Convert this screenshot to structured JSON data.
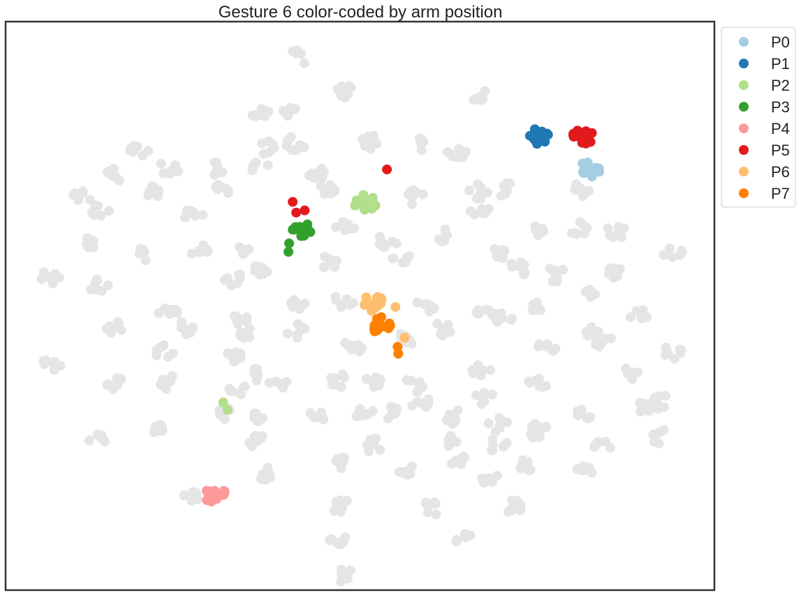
{
  "chart_data": {
    "type": "scatter",
    "title": "Gesture 6 color-coded by arm position",
    "xlabel": "",
    "ylabel": "",
    "xlim": [
      0,
      100
    ],
    "ylim": [
      0,
      100
    ],
    "axes_ticks": false,
    "grid": false,
    "legend": {
      "placement": "outside-top-right"
    },
    "background_color": "#e5e5e5",
    "background_clusters": [
      [
        41.5,
        93.8
      ],
      [
        47.5,
        87.8
      ],
      [
        36.1,
        84.0
      ],
      [
        40.5,
        84.0
      ],
      [
        67.3,
        86.9
      ],
      [
        19.0,
        77.4
      ],
      [
        36.7,
        77.9
      ],
      [
        40.9,
        78.6
      ],
      [
        51.5,
        78.6
      ],
      [
        59.2,
        78.4
      ],
      [
        63.7,
        76.9
      ],
      [
        15.1,
        73.0
      ],
      [
        23.2,
        74.4
      ],
      [
        29.9,
        74.2
      ],
      [
        35.7,
        74.2
      ],
      [
        44.0,
        73.7
      ],
      [
        57.8,
        69.0
      ],
      [
        66.8,
        70.1
      ],
      [
        70.5,
        70.5
      ],
      [
        81.5,
        70.5
      ],
      [
        10.5,
        69.0
      ],
      [
        13.4,
        66.5
      ],
      [
        20.3,
        70.1
      ],
      [
        30.2,
        70.1
      ],
      [
        45.5,
        70.1
      ],
      [
        26.5,
        66.2
      ],
      [
        48.0,
        64.0
      ],
      [
        61.5,
        62.5
      ],
      [
        67.0,
        66.5
      ],
      [
        76.0,
        63.5
      ],
      [
        81.0,
        63.5
      ],
      [
        86.0,
        63.0
      ],
      [
        11.5,
        61.2
      ],
      [
        19.5,
        58.8
      ],
      [
        27.5,
        59.5
      ],
      [
        34.2,
        59.8
      ],
      [
        54.0,
        61.5
      ],
      [
        69.7,
        59.3
      ],
      [
        72.3,
        56.5
      ],
      [
        77.5,
        55.5
      ],
      [
        86.0,
        56.0
      ],
      [
        94.3,
        59.0
      ],
      [
        6.1,
        54.9
      ],
      [
        13.3,
        53.4
      ],
      [
        31.9,
        54.8
      ],
      [
        36.0,
        56.5
      ],
      [
        45.5,
        57.5
      ],
      [
        56.0,
        58.0
      ],
      [
        82.5,
        51.8
      ],
      [
        23.0,
        48.5
      ],
      [
        33.0,
        48.0
      ],
      [
        41.5,
        50.5
      ],
      [
        47.7,
        50.8
      ],
      [
        59.2,
        50.0
      ],
      [
        67.8,
        48.8
      ],
      [
        75.0,
        49.3
      ],
      [
        89.3,
        48.5
      ],
      [
        15.3,
        46.5
      ],
      [
        25.5,
        46.0
      ],
      [
        34.0,
        45.5
      ],
      [
        41.0,
        45.5
      ],
      [
        49.0,
        42.8
      ],
      [
        56.5,
        44.0
      ],
      [
        61.5,
        46.0
      ],
      [
        70.0,
        47.5
      ],
      [
        83.0,
        45.0
      ],
      [
        94.0,
        42.0
      ],
      [
        6.5,
        40.0
      ],
      [
        22.5,
        42.0
      ],
      [
        32.0,
        41.0
      ],
      [
        36.0,
        38.0
      ],
      [
        47.0,
        37.0
      ],
      [
        52.0,
        36.5
      ],
      [
        57.5,
        36.0
      ],
      [
        67.0,
        39.0
      ],
      [
        76.5,
        42.5
      ],
      [
        84.0,
        44.0
      ],
      [
        15.5,
        36.5
      ],
      [
        23.0,
        36.5
      ],
      [
        32.5,
        35.5
      ],
      [
        38.5,
        36.0
      ],
      [
        54.0,
        31.5
      ],
      [
        58.5,
        33.0
      ],
      [
        67.5,
        34.0
      ],
      [
        75.0,
        36.5
      ],
      [
        88.5,
        38.0
      ],
      [
        92.5,
        33.0
      ],
      [
        30.5,
        31.0
      ],
      [
        35.0,
        30.5
      ],
      [
        43.5,
        30.5
      ],
      [
        50.5,
        31.0
      ],
      [
        63.0,
        30.5
      ],
      [
        69.5,
        29.0
      ],
      [
        75.0,
        28.5
      ],
      [
        81.5,
        31.0
      ],
      [
        90.5,
        32.0
      ],
      [
        13.0,
        27.0
      ],
      [
        21.5,
        28.0
      ],
      [
        35.5,
        26.0
      ],
      [
        52.0,
        25.5
      ],
      [
        62.5,
        26.0
      ],
      [
        69.5,
        25.5
      ],
      [
        74.5,
        27.5
      ],
      [
        84.0,
        25.0
      ],
      [
        92.5,
        27.0
      ],
      [
        37.0,
        20.5
      ],
      [
        47.5,
        22.5
      ],
      [
        56.5,
        21.5
      ],
      [
        64.0,
        23.0
      ],
      [
        68.0,
        20.0
      ],
      [
        73.0,
        22.0
      ],
      [
        81.5,
        21.0
      ],
      [
        26.5,
        17.0
      ],
      [
        47.5,
        14.5
      ],
      [
        60.0,
        14.5
      ],
      [
        71.5,
        14.5
      ],
      [
        46.5,
        9.0
      ],
      [
        65.0,
        9.0
      ],
      [
        47.5,
        2.8
      ]
    ],
    "series": [
      {
        "name": "P0",
        "color": "#a6cee3",
        "x": [
          82.3
        ],
        "y": [
          73.9
        ]
      },
      {
        "name": "P1",
        "color": "#1f78b4",
        "x": [
          75.3
        ],
        "y": [
          79.9
        ]
      },
      {
        "name": "P2",
        "color": "#b2df8a",
        "x": [
          50.7,
          30.7,
          31.3
        ],
        "y": [
          68.1,
          33.0,
          31.7
        ]
      },
      {
        "name": "P3",
        "color": "#33a02c",
        "x": [
          42.0,
          40.0,
          39.9
        ],
        "y": [
          63.5,
          61.0,
          59.5
        ]
      },
      {
        "name": "P4",
        "color": "#fb9a99",
        "x": [
          29.5
        ],
        "y": [
          16.8
        ]
      },
      {
        "name": "P5",
        "color": "#e31a1c",
        "x": [
          81.5,
          53.8,
          40.5,
          41.0,
          42.2
        ],
        "y": [
          79.7,
          74.0,
          68.3,
          66.4,
          66.8
        ]
      },
      {
        "name": "P6",
        "color": "#fdbf6f",
        "x": [
          51.8,
          55.0,
          56.3
        ],
        "y": [
          50.5,
          49.8,
          44.4
        ]
      },
      {
        "name": "P7",
        "color": "#ff7f00",
        "x": [
          52.8,
          55.3,
          55.4
        ],
        "y": [
          46.7,
          42.8,
          41.6
        ]
      }
    ]
  }
}
